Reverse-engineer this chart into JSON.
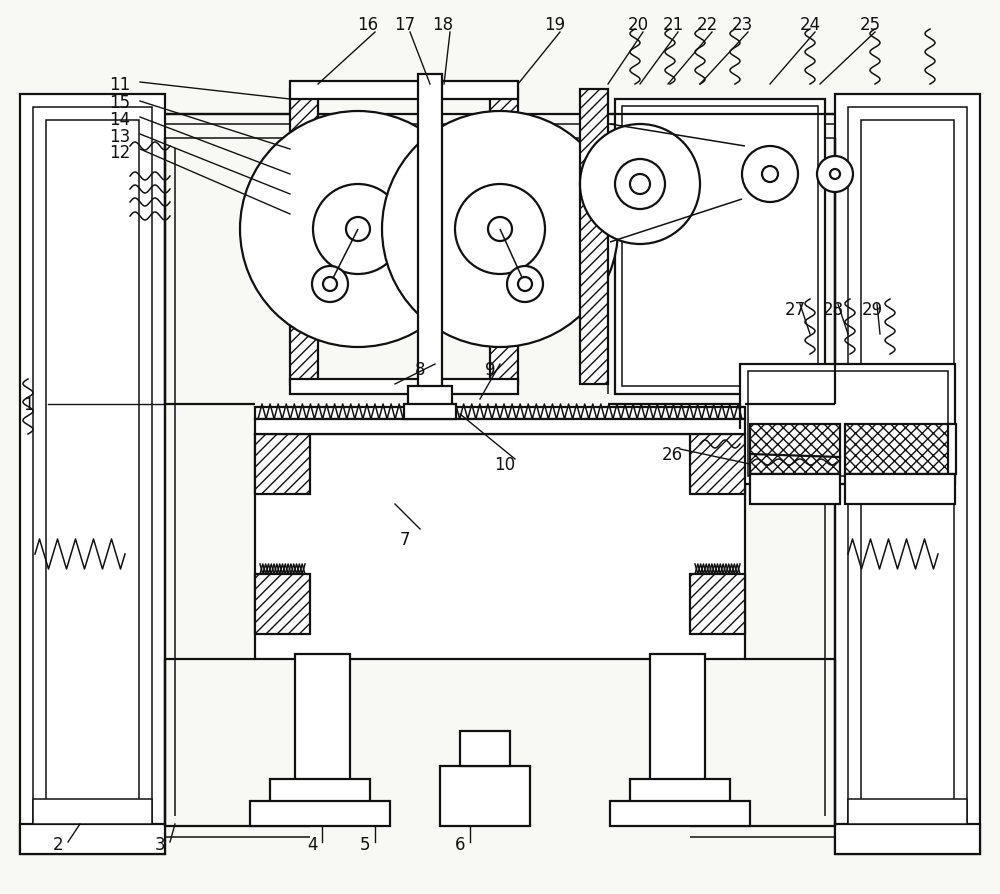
{
  "bg": "#f8f8f5",
  "lc": "#111111",
  "lw": 1.6,
  "lwt": 1.1,
  "lwT": 2.0,
  "fs": 12,
  "fig_w": 10.0,
  "fig_h": 8.95
}
